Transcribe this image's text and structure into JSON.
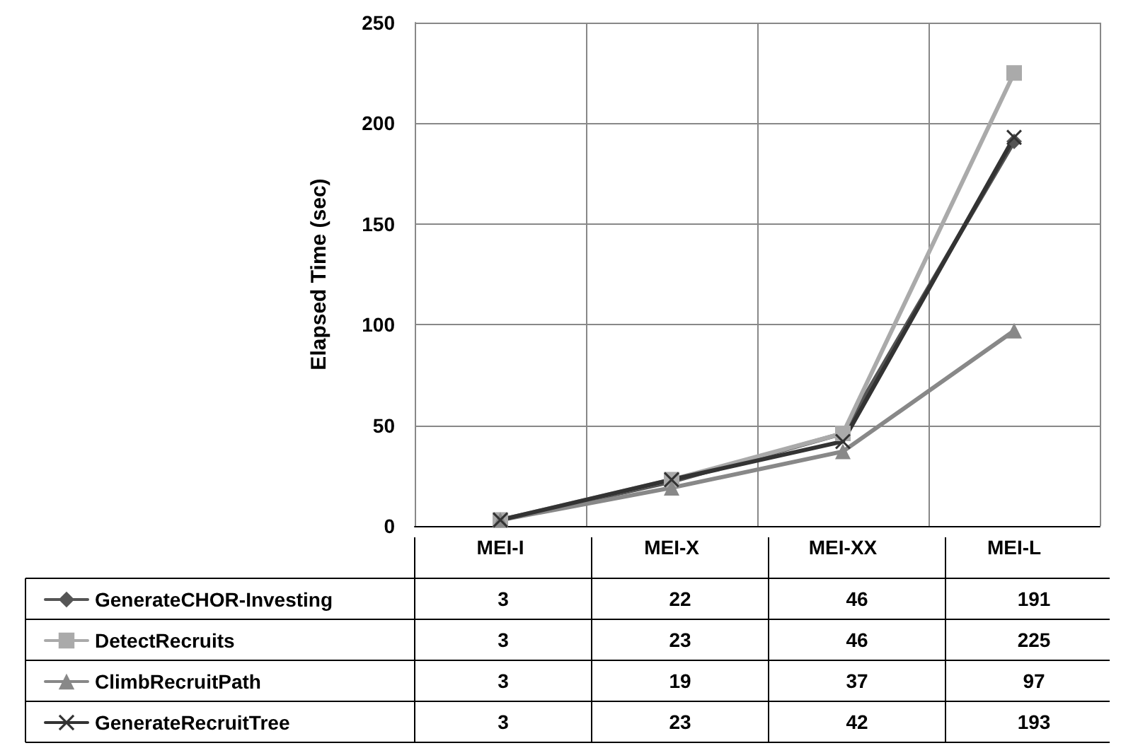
{
  "chart_data": {
    "type": "line",
    "ylabel": "Elapsed Time (sec)",
    "categories": [
      "MEI-I",
      "MEI-X",
      "MEI-XX",
      "MEI-L"
    ],
    "series": [
      {
        "name": "GenerateCHOR-Investing",
        "color": "#555555",
        "marker": "diamond",
        "values": [
          3,
          22,
          46,
          191
        ]
      },
      {
        "name": "DetectRecruits",
        "color": "#aaaaaa",
        "marker": "square",
        "values": [
          3,
          23,
          46,
          225
        ]
      },
      {
        "name": "ClimbRecruitPath",
        "color": "#888888",
        "marker": "triangle",
        "values": [
          3,
          19,
          37,
          97
        ]
      },
      {
        "name": "GenerateRecruitTree",
        "color": "#333333",
        "marker": "cross",
        "values": [
          3,
          23,
          42,
          193
        ]
      }
    ],
    "ylim": [
      0,
      250
    ],
    "yticks": [
      0,
      50,
      100,
      150,
      200,
      250
    ],
    "grid": true,
    "legend": "bottom",
    "data_labels": true
  }
}
